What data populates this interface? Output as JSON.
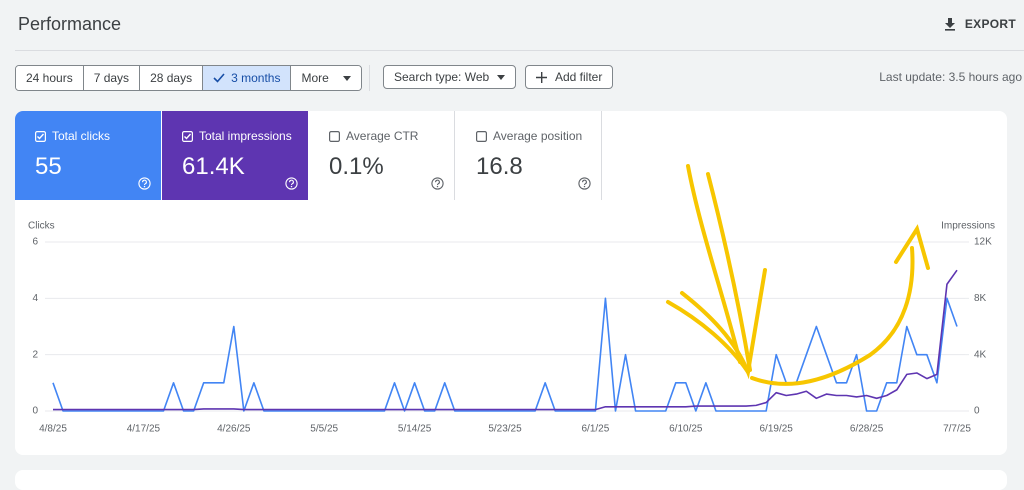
{
  "header": {
    "title": "Performance",
    "export": "EXPORT"
  },
  "toolbar": {
    "ranges": [
      {
        "label": "24 hours"
      },
      {
        "label": "7 days"
      },
      {
        "label": "28 days"
      },
      {
        "label": "3 months",
        "selected": true
      }
    ],
    "more": "More",
    "search_type": "Search type: Web",
    "add_filter": "Add filter",
    "last_update": "Last update: 3.5 hours ago"
  },
  "metrics": [
    {
      "label": "Total clicks",
      "value": "55",
      "checked": true,
      "color": "#4285f4"
    },
    {
      "label": "Total impressions",
      "value": "61.4K",
      "checked": true,
      "color": "#5e35b1"
    },
    {
      "label": "Average CTR",
      "value": "0.1%",
      "checked": false
    },
    {
      "label": "Average position",
      "value": "16.8",
      "checked": false
    }
  ],
  "chart_data": {
    "type": "line",
    "ylabel": "Clicks",
    "y2label": "Impressions",
    "categories": [
      "4/8/25",
      null,
      null,
      null,
      null,
      null,
      null,
      null,
      null,
      "4/17/25",
      null,
      null,
      null,
      null,
      null,
      null,
      null,
      null,
      "4/26/25",
      null,
      null,
      null,
      null,
      null,
      null,
      null,
      null,
      "5/5/25",
      null,
      null,
      null,
      null,
      null,
      null,
      null,
      null,
      "5/14/25",
      null,
      null,
      null,
      null,
      null,
      null,
      null,
      null,
      "5/23/25",
      null,
      null,
      null,
      null,
      null,
      null,
      null,
      null,
      "6/1/25",
      null,
      null,
      null,
      null,
      null,
      null,
      null,
      null,
      "6/10/25",
      null,
      null,
      null,
      null,
      null,
      null,
      null,
      null,
      "6/19/25",
      null,
      null,
      null,
      null,
      null,
      null,
      null,
      null,
      "6/28/25",
      null,
      null,
      null,
      null,
      null,
      null,
      null,
      null,
      "7/7/25"
    ],
    "ylim": [
      0,
      6
    ],
    "yticks": [
      0,
      2,
      4,
      6
    ],
    "y2lim": [
      0,
      12000
    ],
    "y2ticks": [
      0,
      {
        "value": 4000,
        "label": "4K"
      },
      {
        "value": 8000,
        "label": "8K"
      },
      {
        "value": 12000,
        "label": "12K"
      }
    ],
    "grid": true,
    "series": [
      {
        "color": "#4285f4",
        "values": [
          1,
          0,
          0,
          0,
          0,
          0,
          0,
          0,
          0,
          0,
          0,
          0,
          1,
          0,
          0,
          1,
          1,
          1,
          3,
          0,
          1,
          0,
          0,
          0,
          0,
          0,
          0,
          0,
          0,
          0,
          0,
          0,
          0,
          0,
          1,
          0,
          1,
          0,
          0,
          1,
          0,
          0,
          0,
          0,
          0,
          0,
          0,
          0,
          0,
          1,
          0,
          0,
          0,
          0,
          0,
          4,
          0,
          2,
          0,
          0,
          0,
          0,
          1,
          1,
          0,
          1,
          0,
          0,
          0,
          0,
          0,
          0,
          2,
          1,
          1,
          2,
          3,
          2,
          1,
          1,
          2,
          0,
          0,
          1,
          1,
          3,
          2,
          2,
          1,
          4,
          3
        ]
      },
      {
        "color": "#5e35b1",
        "axis": "y2",
        "values": [
          100,
          100,
          100,
          100,
          100,
          100,
          100,
          100,
          100,
          100,
          100,
          100,
          100,
          100,
          100,
          150,
          150,
          150,
          150,
          100,
          100,
          100,
          100,
          100,
          100,
          100,
          100,
          100,
          100,
          100,
          100,
          100,
          100,
          100,
          100,
          100,
          100,
          100,
          100,
          100,
          100,
          100,
          100,
          100,
          100,
          100,
          100,
          100,
          100,
          100,
          100,
          100,
          100,
          100,
          100,
          300,
          300,
          300,
          300,
          300,
          300,
          300,
          300,
          300,
          350,
          350,
          350,
          350,
          350,
          350,
          400,
          600,
          1300,
          1100,
          1200,
          1400,
          900,
          1200,
          1100,
          1100,
          1000,
          1100,
          900,
          1100,
          1500,
          2600,
          2700,
          2300,
          2600,
          9000,
          10000
        ]
      }
    ]
  }
}
